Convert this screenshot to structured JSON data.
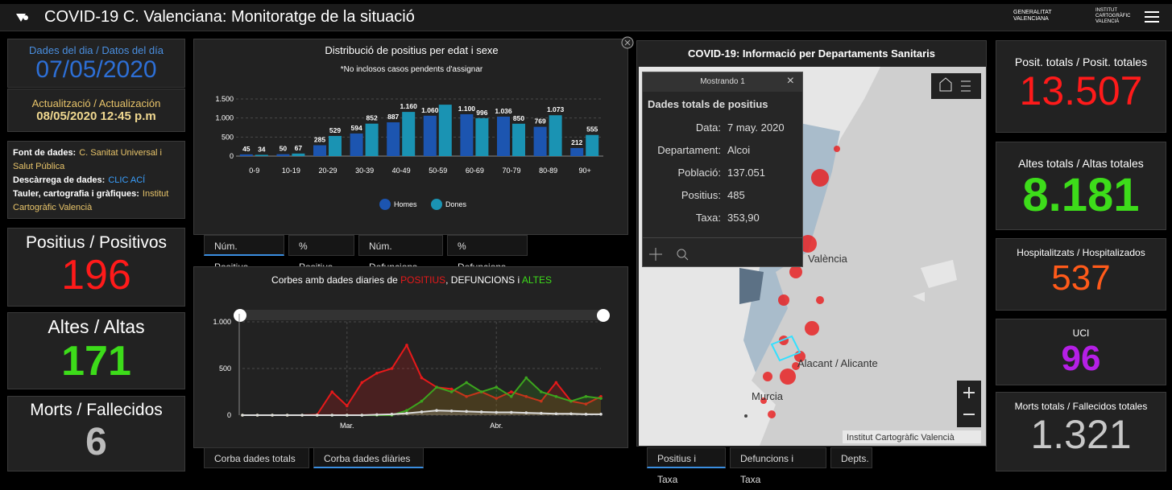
{
  "header": {
    "title": "COVID-19 C. Valenciana: Monitoratge de la situació",
    "logo_gva": [
      "GENERALITAT",
      "VALENCIANA"
    ],
    "logo_icv": [
      "INSTITUT",
      "CARTOGRÀFIC",
      "VALENCIÀ"
    ]
  },
  "left": {
    "date_label": "Dades del dia / Datos del día",
    "date": "07/05/2020",
    "update_label": "Actualització / Actualización",
    "update": "08/05/2020 12:45 p.m",
    "sources": [
      {
        "label": "Font de dades:",
        "value": "C. Sanitat Universal i Salut Pública"
      },
      {
        "label": "Descàrrega de dades:",
        "value": "CLIC ACÍ"
      },
      {
        "label": "Tauler, cartografia i gràfiques:",
        "value": "Institut Cartogràfic Valencià"
      }
    ],
    "positius_label": "Positius / Positivos",
    "positius": "196",
    "altes_label": "Altes / Altas",
    "altes": "171",
    "morts_label": "Morts / Fallecidos",
    "morts": "6"
  },
  "bar_chart": {
    "type": "bar",
    "title": "Distribució de positius per edat i sexe",
    "subtitle": "*No inclosos casos pendents d'assignar",
    "categories": [
      "0-9",
      "10-19",
      "20-29",
      "30-39",
      "40-49",
      "50-59",
      "60-69",
      "70-79",
      "80-89",
      "90+"
    ],
    "series": [
      {
        "name": "Homes",
        "color": "#1c55b0",
        "values": [
          45,
          50,
          285,
          594,
          887,
          1060,
          1100,
          1036,
          769,
          212
        ],
        "value_labels": [
          "45",
          "50",
          "285",
          "594",
          "887",
          "1.060",
          "1.100",
          "1.036",
          "769",
          "212"
        ]
      },
      {
        "name": "Dones",
        "color": "#1a93b3",
        "values": [
          34,
          67,
          529,
          852,
          1160,
          1350,
          996,
          850,
          1073,
          555
        ],
        "value_labels": [
          "34",
          "67",
          "529",
          "852",
          "1.160",
          null,
          "996",
          "850",
          "1.073",
          "555"
        ]
      }
    ],
    "ylim": [
      0,
      1500
    ],
    "yticks": [
      0,
      500,
      {
        "value": 1000,
        "label": "1.000"
      },
      {
        "value": 1500,
        "label": "1.500"
      }
    ],
    "grid": true
  },
  "bar_tabs": {
    "items": [
      "Núm. Positius",
      "% Positius",
      "Núm. Defuncions",
      "% Defuncions"
    ],
    "active": 0
  },
  "line_chart": {
    "type": "line",
    "title": [
      "Corbes amb dades diaries de ",
      "POSITIUS",
      ", DEFUNCIONS i ",
      "ALTES"
    ],
    "categories": [
      null,
      null,
      null,
      null,
      null,
      null,
      null,
      "Mar.",
      null,
      null,
      null,
      null,
      null,
      null,
      null,
      null,
      null,
      "Abr.",
      null,
      null,
      null,
      null,
      null,
      null,
      null
    ],
    "series": [
      {
        "name": "POSITIUS",
        "color": "#e8191a",
        "values": [
          0,
          0,
          0,
          0,
          0,
          5,
          250,
          100,
          350,
          450,
          500,
          750,
          400,
          300,
          280,
          200,
          250,
          180,
          250,
          200,
          150,
          350,
          150,
          120,
          200
        ]
      },
      {
        "name": "ALTES",
        "color": "#3ca51e",
        "values": [
          0,
          0,
          0,
          0,
          0,
          0,
          0,
          0,
          0,
          0,
          0,
          50,
          150,
          300,
          250,
          350,
          250,
          300,
          200,
          400,
          250,
          200,
          150,
          200,
          180
        ]
      },
      {
        "name": "DEFUNCIONS",
        "color": "#dddddd",
        "values": [
          0,
          0,
          0,
          0,
          0,
          0,
          0,
          0,
          0,
          5,
          10,
          20,
          35,
          50,
          45,
          40,
          35,
          30,
          30,
          25,
          20,
          15,
          15,
          10,
          10
        ]
      }
    ],
    "ylim": [
      0,
      1000
    ],
    "yticks": [
      0,
      500,
      {
        "value": 1000,
        "label": "1.000"
      }
    ],
    "grid": true
  },
  "line_tabs": {
    "items": [
      "Corba dades totals",
      "Corba dades diàries"
    ],
    "active": 1
  },
  "map": {
    "title": "COVID-19: Informació per Departaments Sanitaris",
    "labels": [
      "València",
      "Alacant / Alicante",
      "Murcia"
    ],
    "attribution": "Institut Cartogràfic Valencià",
    "popup": {
      "header": "Mostrando 1",
      "title": "Dades totals de positius",
      "rows": [
        [
          "Data:",
          "7 may. 2020"
        ],
        [
          "Departament:",
          "Alcoi"
        ],
        [
          "Població:",
          "137.051"
        ],
        [
          "Positius:",
          "485"
        ],
        [
          "Taxa:",
          "353,90"
        ]
      ]
    }
  },
  "map_tabs": {
    "items": [
      "Positius i Taxa",
      "Defuncions i Taxa",
      "Depts."
    ],
    "active": 0
  },
  "right": [
    {
      "label": "Posit. totals / Posit. totales",
      "value": "13.507",
      "color": "#ff1a1a"
    },
    {
      "label": "Altes totals / Altas totales",
      "value": "8.181",
      "color": "#3ddc1a"
    },
    {
      "label": "Hospitalitzats / Hospitalizados",
      "value": "537",
      "color": "#ff5a1a"
    },
    {
      "label": "UCI",
      "value": "96",
      "color": "#b51fe6"
    },
    {
      "label": "Morts totals / Fallecidos totales",
      "value": "1.321",
      "color": "#c8c8c8"
    }
  ]
}
